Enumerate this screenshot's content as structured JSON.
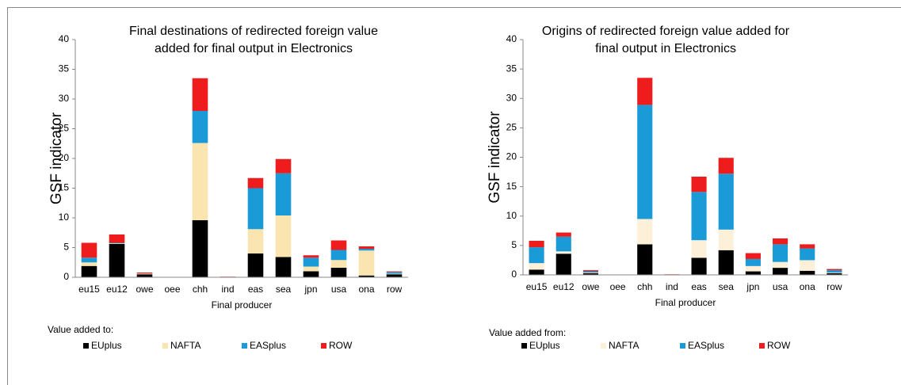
{
  "chart_data": [
    {
      "type": "stacked-bar",
      "title": [
        "Final destinations of redirected foreign value",
        "added for final output in Electronics"
      ],
      "y_label": "GSF indicator",
      "x_label": "Final producer",
      "legend_title": "Value added to:",
      "categories": [
        "eu15",
        "eu12",
        "owe",
        "oee",
        "chh",
        "ind",
        "eas",
        "sea",
        "jpn",
        "usa",
        "ona",
        "row"
      ],
      "ylim": [
        0,
        40
      ],
      "yticks": [
        0,
        5,
        10,
        15,
        20,
        25,
        30,
        35,
        40
      ],
      "series": [
        {
          "name": "EUplus",
          "color": "#000000",
          "values": [
            1.9,
            5.6,
            0.5,
            0,
            9.6,
            0,
            4.0,
            3.4,
            1.0,
            1.6,
            0.3,
            0.5
          ]
        },
        {
          "name": "NAFTA",
          "color": "#fae5b0",
          "values": [
            0.6,
            0.1,
            0.1,
            0,
            13.0,
            0,
            4.1,
            7.0,
            0.8,
            1.3,
            4.2,
            0.1
          ]
        },
        {
          "name": "EASplus",
          "color": "#1a9bd7",
          "values": [
            0.8,
            0.1,
            0.05,
            0,
            5.4,
            0,
            6.9,
            7.1,
            1.5,
            1.7,
            0.3,
            0.3
          ]
        },
        {
          "name": "ROW",
          "color": "#ee1c1c",
          "values": [
            2.5,
            1.4,
            0.15,
            0,
            5.5,
            0.1,
            1.7,
            2.4,
            0.4,
            1.6,
            0.4,
            0.1
          ]
        }
      ]
    },
    {
      "type": "stacked-bar",
      "title": [
        "Origins of redirected foreign value added for",
        "final output in Electronics"
      ],
      "y_label": "GSF indicator",
      "x_label": "Final producer",
      "legend_title": "Value added from:",
      "categories": [
        "eu15",
        "eu12",
        "owe",
        "oee",
        "chh",
        "ind",
        "eas",
        "sea",
        "jpn",
        "usa",
        "ona",
        "row"
      ],
      "ylim": [
        0,
        40
      ],
      "yticks": [
        0,
        5,
        10,
        15,
        20,
        25,
        30,
        35,
        40
      ],
      "series": [
        {
          "name": "EUplus",
          "color": "#000000",
          "values": [
            0.9,
            3.6,
            0.3,
            0,
            5.2,
            0,
            2.9,
            4.2,
            0.6,
            1.2,
            0.7,
            0.3
          ]
        },
        {
          "name": "NAFTA",
          "color": "#fdf0d9",
          "values": [
            1.1,
            0.4,
            0.1,
            0,
            4.3,
            0,
            3.0,
            3.5,
            0.9,
            1.0,
            1.8,
            0.1
          ]
        },
        {
          "name": "EASplus",
          "color": "#1a9bd7",
          "values": [
            2.7,
            2.5,
            0.2,
            0,
            19.4,
            0,
            8.2,
            9.5,
            1.2,
            3.0,
            2.0,
            0.4
          ]
        },
        {
          "name": "ROW",
          "color": "#ee1c1c",
          "values": [
            1.1,
            0.7,
            0.2,
            0,
            4.6,
            0.1,
            2.6,
            2.7,
            1.0,
            1.0,
            0.7,
            0.2
          ]
        }
      ]
    }
  ]
}
